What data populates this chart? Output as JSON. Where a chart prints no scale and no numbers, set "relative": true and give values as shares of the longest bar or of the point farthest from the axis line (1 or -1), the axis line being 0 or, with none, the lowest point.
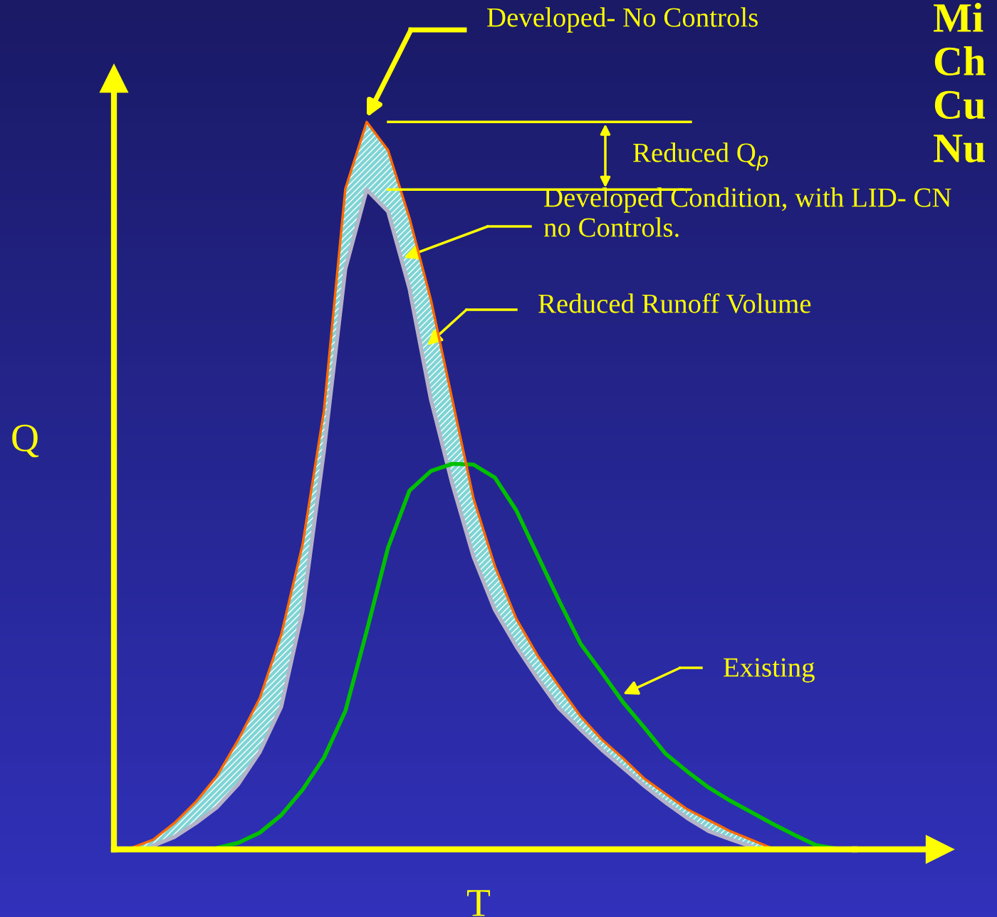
{
  "chart_data": {
    "type": "line",
    "relative": true,
    "title": "Mi\nCh\nCu\nNu",
    "xlabel": "T",
    "ylabel": "Q",
    "categories": [
      null,
      null,
      null,
      null,
      null,
      null,
      null,
      null,
      null,
      null,
      null,
      null,
      null,
      null,
      null,
      null,
      null,
      null,
      null,
      null,
      null,
      null,
      null,
      null,
      null,
      null,
      null,
      null,
      null,
      null,
      null,
      null,
      null,
      null
    ],
    "series": [
      {
        "color": "#ff6a00",
        "lower": [
          0.0,
          0.005,
          0.017,
          0.036,
          0.058,
          0.09,
          0.134,
          0.196,
          0.328,
          0.548,
          0.798,
          0.907,
          0.877,
          0.771,
          0.619,
          0.503,
          0.402,
          0.329,
          0.279,
          0.235,
          0.194,
          0.165,
          0.137,
          0.112,
          0.087,
          0.064,
          0.043,
          0.025,
          0.014,
          0.004,
          0.0,
          null,
          null,
          null
        ],
        "upper": [
          0.002,
          0.013,
          0.036,
          0.065,
          0.101,
          0.151,
          0.208,
          0.295,
          0.419,
          0.603,
          0.908,
          1.0,
          0.961,
          0.868,
          0.756,
          0.619,
          0.482,
          0.389,
          0.317,
          0.266,
          0.224,
          0.183,
          0.151,
          0.125,
          0.097,
          0.076,
          0.055,
          0.04,
          0.025,
          0.013,
          0.001,
          null,
          null,
          null
        ],
        "values": [
          0.002,
          0.013,
          0.036,
          0.065,
          0.101,
          0.151,
          0.208,
          0.295,
          0.419,
          0.603,
          0.908,
          1.0,
          0.961,
          0.868,
          0.756,
          0.619,
          0.482,
          0.389,
          0.317,
          0.266,
          0.224,
          0.183,
          0.151,
          0.125,
          0.097,
          0.076,
          0.055,
          0.04,
          0.025,
          0.013,
          0.001,
          null,
          null,
          null
        ]
      },
      {
        "color": "#b4b4c8",
        "values": [
          null,
          0.005,
          0.017,
          0.036,
          0.058,
          0.09,
          0.134,
          0.196,
          0.328,
          0.548,
          0.798,
          0.907,
          0.877,
          0.771,
          0.619,
          0.503,
          0.402,
          0.329,
          0.279,
          0.235,
          0.194,
          0.165,
          0.137,
          0.112,
          0.087,
          0.064,
          0.043,
          0.025,
          0.014,
          0.004,
          null,
          null,
          null,
          null
        ]
      },
      {
        "color": "#00c000",
        "values": [
          null,
          null,
          null,
          null,
          0.002,
          0.009,
          0.023,
          0.047,
          0.082,
          0.126,
          0.19,
          0.3,
          0.415,
          0.493,
          0.52,
          0.53,
          0.529,
          0.511,
          0.466,
          0.404,
          0.342,
          0.283,
          0.243,
          0.202,
          0.167,
          0.131,
          0.107,
          0.085,
          0.067,
          0.051,
          0.035,
          0.02,
          0.006,
          0.001
        ]
      }
    ],
    "ref_lines": [
      {
        "axis": "y",
        "value": 1.0,
        "color": "#ffff00"
      },
      {
        "axis": "y",
        "value": 0.907,
        "color": "#ffff00"
      }
    ],
    "annotations": [
      "Developed- No Controls",
      "Reduced Q$_{p}$",
      "Developed Condition, with LID- CN\nno Controls.",
      "Reduced Runoff Volume",
      "Existing"
    ]
  }
}
